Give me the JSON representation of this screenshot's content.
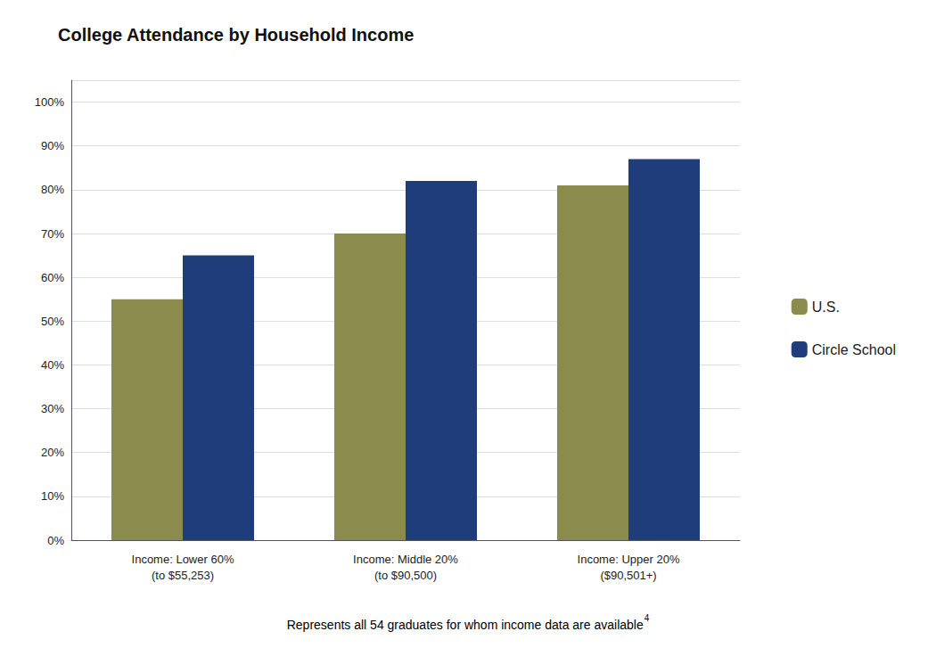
{
  "chart_data": {
    "type": "bar",
    "title": "College Attendance by Household Income",
    "categories": [
      "Income: Lower 60%\n(to $55,253)",
      "Income: Middle 20%\n(to $90,500)",
      "Income: Upper 20%\n($90,501+)"
    ],
    "series": [
      {
        "name": "U.S.",
        "color": "#8B8B4E",
        "values": [
          0.55,
          0.7,
          0.81
        ]
      },
      {
        "name": "Circle School",
        "color": "#1F3D7A",
        "values": [
          0.65,
          0.82,
          0.87
        ]
      }
    ],
    "ylim": [
      0,
      1.05
    ],
    "yticks": [
      {
        "value": 0.0,
        "label": "0%"
      },
      {
        "value": 0.1,
        "label": "10%"
      },
      {
        "value": 0.2,
        "label": "20%"
      },
      {
        "value": 0.3,
        "label": "30%"
      },
      {
        "value": 0.4,
        "label": "40%"
      },
      {
        "value": 0.5,
        "label": "50%"
      },
      {
        "value": 0.6,
        "label": "60%"
      },
      {
        "value": 0.7,
        "label": "70%"
      },
      {
        "value": 0.8,
        "label": "80%"
      },
      {
        "value": 0.9,
        "label": "90%"
      },
      {
        "value": 1.0,
        "label": "100%"
      }
    ],
    "grid": true,
    "legend": "right",
    "annotations": [
      "Represents all 54 graduates for whom income data are available",
      "4"
    ]
  }
}
